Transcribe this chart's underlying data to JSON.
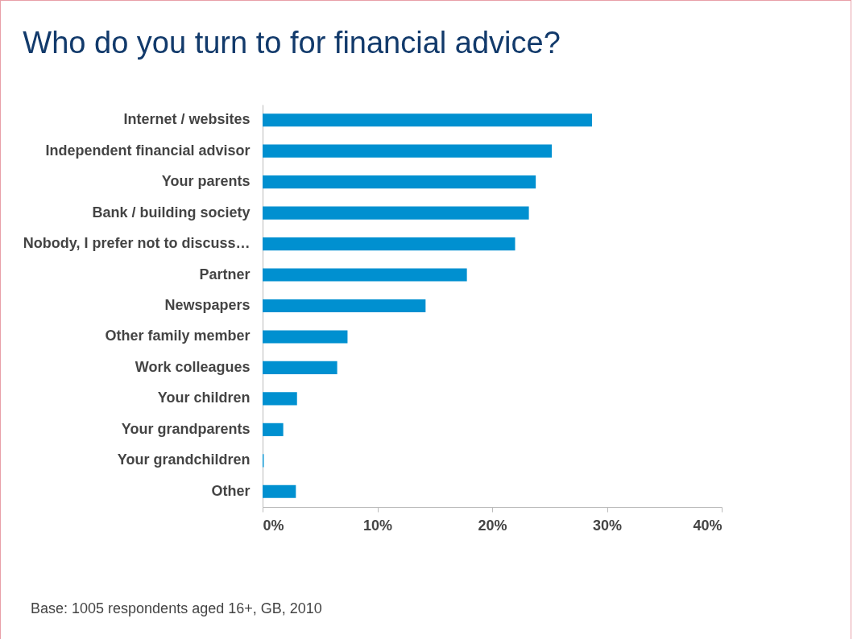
{
  "chart_data": {
    "type": "bar",
    "orientation": "horizontal",
    "title": "Who do you turn to for financial advice?",
    "categories": [
      "Internet / websites",
      "Independent financial advisor",
      "Your parents",
      "Bank / building society",
      "Nobody, I prefer not to discuss…",
      "Partner",
      "Newspapers",
      "Other family member",
      "Work colleagues",
      "Your children",
      "Your grandparents",
      "Your grandchildren",
      "Other"
    ],
    "values": [
      28.7,
      25.2,
      23.8,
      23.2,
      22.0,
      17.8,
      14.2,
      7.4,
      6.5,
      3.0,
      1.8,
      0.1,
      2.9
    ],
    "color": "#0090d0",
    "xlim": [
      0,
      40
    ],
    "xticks": [
      {
        "value": 0,
        "label": "0%"
      },
      {
        "value": 10,
        "label": "10%"
      },
      {
        "value": 20,
        "label": "20%"
      },
      {
        "value": 30,
        "label": "30%"
      },
      {
        "value": 40,
        "label": "40%"
      }
    ],
    "grid": false,
    "annotations": [
      "Base: 1005 respondents aged 16+, GB, 2010"
    ]
  }
}
